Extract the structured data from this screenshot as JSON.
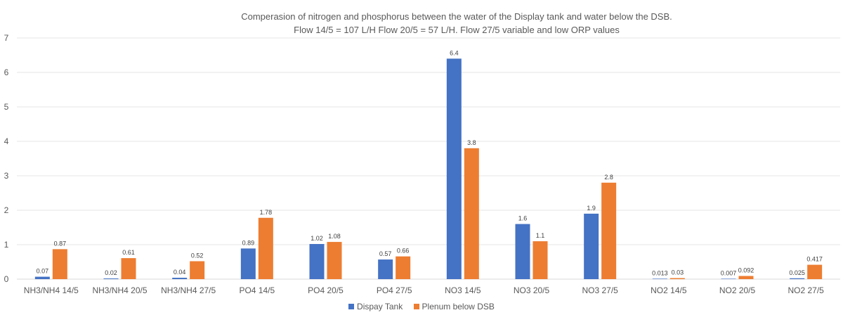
{
  "chart_data": {
    "type": "bar",
    "title": "Comperasion of nitrogen and phosphorus between the water of the Display tank and water below the DSB.",
    "subtitle": "Flow 14/5 = 107 L/H  Flow 20/5 = 57 L/H. Flow 27/5 variable and low ORP values",
    "categories": [
      "NH3/NH4 14/5",
      "NH3/NH4 20/5",
      "NH3/NH4 27/5",
      "PO4 14/5",
      "PO4 20/5",
      "PO4 27/5",
      "NO3 14/5",
      "NO3 20/5",
      "NO3 27/5",
      "NO2 14/5",
      "NO2 20/5",
      "NO2 27/5"
    ],
    "series": [
      {
        "name": "Dispay Tank",
        "color": "#4472C4",
        "values": [
          0.07,
          0.02,
          0.04,
          0.89,
          1.02,
          0.57,
          6.4,
          1.6,
          1.9,
          0.013,
          0.007,
          0.025
        ],
        "labels": [
          "0.07",
          "0.02",
          "0.04",
          "0.89",
          "1.02",
          "0.57",
          "6.4",
          "1.6",
          "1.9",
          "0.013",
          "0.007",
          "0.025"
        ]
      },
      {
        "name": "Plenum below DSB",
        "color": "#ED7D31",
        "values": [
          0.87,
          0.61,
          0.52,
          1.78,
          1.08,
          0.66,
          3.8,
          1.1,
          2.8,
          0.03,
          0.092,
          0.417
        ],
        "labels": [
          "0.87",
          "0.61",
          "0.52",
          "1.78",
          "1.08",
          "0.66",
          "3.8",
          "1.1",
          "2.8",
          "0.03",
          "0.092",
          "0.417"
        ]
      }
    ],
    "yticks": [
      "0",
      "1",
      "2",
      "3",
      "4",
      "5",
      "6",
      "7"
    ],
    "ylim": [
      0,
      7
    ],
    "grid": true,
    "legend_position": "bottom"
  }
}
